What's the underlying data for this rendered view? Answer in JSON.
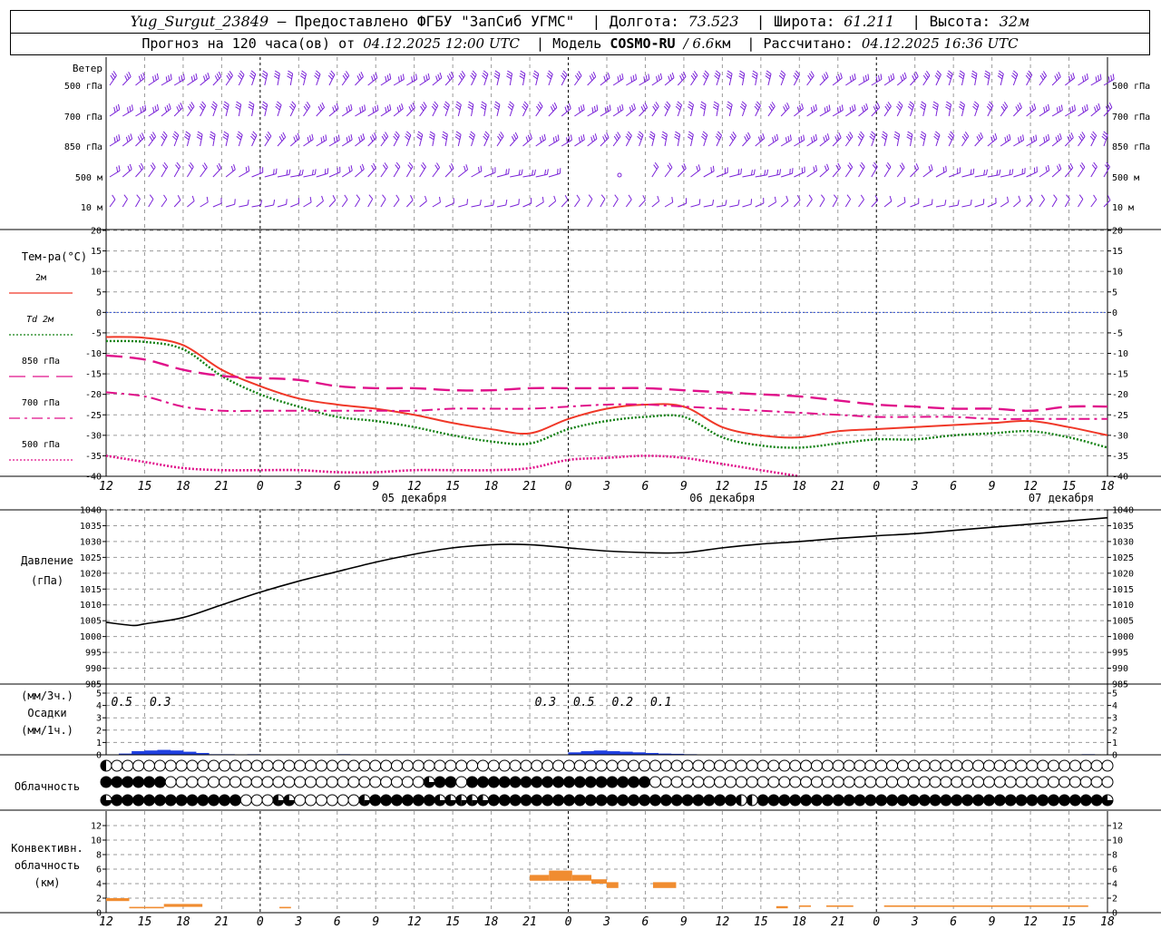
{
  "header": {
    "station": "Yug_Surgut_23849",
    "provided": "— Предоставлено ФГБУ \"ЗапСиб УГМС\"",
    "lon_label": "Долгота:",
    "lon_value": "73.523",
    "lat_label": "Широта:",
    "lat_value": "61.211",
    "alt_label": "Высота:",
    "alt_value": "32м",
    "forecast_label": "Прогноз на 120 часа(ов) от",
    "forecast_start": "04.12.2025 12:00 UTC",
    "model_label": "Модель",
    "model_name": "COSMO-RU",
    "model_res": "/ 6.6",
    "model_res_unit": "км",
    "calc_label": "Рассчитано:",
    "calc_time": "04.12.2025 16:36 UTC"
  },
  "chart_data": {
    "time_ticks": [
      "12",
      "15",
      "18",
      "21",
      "0",
      "3",
      "6",
      "9",
      "12",
      "15",
      "18",
      "21",
      "0",
      "3",
      "6",
      "9",
      "12",
      "15",
      "18",
      "21",
      "0",
      "3",
      "6",
      "9",
      "12",
      "15",
      "18"
    ],
    "day_labels": [
      "05 декабря",
      "06 декабря",
      "07 декабря"
    ],
    "wind": {
      "title": "Ветер",
      "levels": [
        "500 гПа",
        "700 гПа",
        "850 гПа",
        "500 м",
        "10  м"
      ]
    },
    "temperature": {
      "type": "line",
      "title": "Тем-ра(°C)",
      "ylim": [
        -40,
        20
      ],
      "yticks": [
        20,
        15,
        10,
        5,
        0,
        -5,
        -10,
        -15,
        -20,
        -25,
        -30,
        -35,
        -40
      ],
      "legend": [
        {
          "label": "2м",
          "color": "#e8201a",
          "style": "solid"
        },
        {
          "label": "Td  2м",
          "color": "#1a8a1a",
          "style": "dotted"
        },
        {
          "label": "850 гПа",
          "color": "#e0107a",
          "style": "longdash"
        },
        {
          "label": "700 гПа",
          "color": "#e0107a",
          "style": "dashdot"
        },
        {
          "label": "500 гПа",
          "color": "#e0107a",
          "style": "dense-dot"
        }
      ],
      "series": [
        {
          "name": "2м",
          "x": [
            0,
            1,
            2,
            3,
            4,
            5,
            6,
            7,
            8,
            9,
            10,
            11,
            12,
            13,
            14,
            15,
            16,
            17,
            18,
            19,
            20,
            21,
            22,
            23,
            24,
            25,
            26
          ],
          "values": [
            -6,
            -6.2,
            -8,
            -14,
            -18,
            -21,
            -22.5,
            -23.5,
            -25,
            -27,
            -28.5,
            -29.5,
            -26,
            -23.5,
            -22.5,
            -23,
            -28,
            -30,
            -30.5,
            -29,
            -28.5,
            -28,
            -27.5,
            -27,
            -26.5,
            -28,
            -30
          ]
        },
        {
          "name": "Td 2м",
          "x": [
            0,
            1,
            2,
            3,
            4,
            5,
            6,
            7,
            8,
            9,
            10,
            11,
            12,
            13,
            14,
            15,
            16,
            17,
            18,
            19,
            20,
            21,
            22,
            23,
            24,
            25,
            26
          ],
          "values": [
            -7,
            -7.2,
            -9,
            -15.5,
            -20,
            -23,
            -25.5,
            -26.5,
            -28,
            -30,
            -31.5,
            -32,
            -28.5,
            -26.5,
            -25.5,
            -25.5,
            -30.5,
            -32.5,
            -33,
            -32,
            -31,
            -31,
            -30,
            -29.5,
            -29,
            -30.5,
            -33
          ]
        },
        {
          "name": "850 гПа",
          "x": [
            0,
            1,
            2,
            3,
            4,
            5,
            6,
            7,
            8,
            9,
            10,
            11,
            12,
            13,
            14,
            15,
            16,
            17,
            18,
            19,
            20,
            21,
            22,
            23,
            24,
            25,
            26
          ],
          "values": [
            -10.5,
            -11.5,
            -14,
            -15.5,
            -16,
            -16.5,
            -18,
            -18.5,
            -18.5,
            -19,
            -19,
            -18.5,
            -18.5,
            -18.5,
            -18.5,
            -19,
            -19.5,
            -20,
            -20.5,
            -21.5,
            -22.5,
            -23,
            -23.5,
            -23.5,
            -24,
            -23,
            -23
          ]
        },
        {
          "name": "700 гПа",
          "x": [
            0,
            1,
            2,
            3,
            4,
            5,
            6,
            7,
            8,
            9,
            10,
            11,
            12,
            13,
            14,
            15,
            16,
            17,
            18,
            19,
            20,
            21,
            22,
            23,
            24,
            25,
            26
          ],
          "values": [
            -19.5,
            -20.5,
            -23,
            -24,
            -24,
            -24,
            -24,
            -24,
            -24,
            -23.5,
            -23.5,
            -23.5,
            -23,
            -22.5,
            -22.5,
            -23,
            -23.5,
            -24,
            -24.5,
            -25,
            -25.5,
            -25.5,
            -25.5,
            -26,
            -26,
            -26,
            -26
          ]
        },
        {
          "name": "500 гПа",
          "x": [
            0,
            1,
            2,
            3,
            4,
            5,
            6,
            7,
            8,
            9,
            10,
            11,
            12,
            13,
            14,
            15,
            16,
            17,
            18
          ],
          "values": [
            -35,
            -36.5,
            -38,
            -38.5,
            -38.5,
            -38.5,
            -39,
            -39,
            -38.5,
            -38.5,
            -38.5,
            -38,
            -36,
            -35.5,
            -35,
            -35.5,
            -37,
            -38.5,
            -40
          ]
        }
      ]
    },
    "pressure": {
      "type": "line",
      "title_1": "Давление",
      "title_2": "(гПа)",
      "ylim": [
        985,
        1040
      ],
      "yticks": [
        1040,
        1035,
        1030,
        1025,
        1020,
        1015,
        1010,
        1005,
        1000,
        995,
        990,
        985
      ],
      "series": [
        {
          "name": "pressure",
          "x": [
            0,
            0.7,
            1,
            2,
            3,
            4,
            5,
            6,
            7,
            8,
            9,
            10,
            11,
            12,
            13,
            14,
            15,
            16,
            17,
            18,
            19,
            20,
            21,
            22,
            23,
            24,
            25,
            26
          ],
          "values": [
            1004.5,
            1003.5,
            1004,
            1006,
            1010,
            1014,
            1017.5,
            1020.5,
            1023.5,
            1026,
            1028,
            1029,
            1029,
            1028,
            1027,
            1026.5,
            1026.5,
            1028,
            1029.2,
            1030,
            1031,
            1031.8,
            1032.5,
            1033.5,
            1034.5,
            1035.5,
            1036.5,
            1037.5
          ]
        }
      ]
    },
    "precipitation": {
      "type": "bar",
      "title_1": "(мм/3ч.)",
      "title_2": "Осадки",
      "title_3": "(мм/1ч.)",
      "ylim": [
        0,
        5
      ],
      "yticks": [
        5,
        4,
        3,
        2,
        1,
        0
      ],
      "labels": [
        {
          "x": 0.5,
          "text": "0.5"
        },
        {
          "x": 1.5,
          "text": "0.3"
        },
        {
          "x": 11.5,
          "text": "0.3"
        },
        {
          "x": 12.5,
          "text": "0.5"
        },
        {
          "x": 13.5,
          "text": "0.2"
        },
        {
          "x": 14.5,
          "text": "0.1"
        }
      ],
      "hourly": [
        0.1,
        0.3,
        0.35,
        0.4,
        0.35,
        0.25,
        0.15,
        0.05,
        0.05,
        0,
        0.05,
        0,
        0,
        0,
        0,
        0,
        0,
        0.05,
        0,
        0,
        0,
        0,
        0,
        0,
        0,
        0,
        0,
        0,
        0,
        0,
        0,
        0,
        0,
        0,
        0.02,
        0.2,
        0.3,
        0.35,
        0.3,
        0.25,
        0.2,
        0.15,
        0.1,
        0.08,
        0.05,
        0.03,
        0.02,
        0,
        0,
        0,
        0,
        0,
        0.02,
        0,
        0.03,
        0,
        0.02,
        0,
        0,
        0,
        0,
        0,
        0.02,
        0,
        0,
        0,
        0,
        0,
        0,
        0,
        0,
        0,
        0,
        0,
        0,
        0.05,
        0,
        0,
        0
      ]
    },
    "cloudiness": {
      "title": "Облачность",
      "rows": [
        "1000000000000000000000000000000000000000000000000000000000000000000000000000000000000000000000",
        "4444440000000000000000000000003440444444444444444440000000000000000000000000000000000000000000",
        "2444444444444000230000002444444232234444444444444444444444411444444444444444444444444444444442"
      ]
    },
    "convective": {
      "type": "bar",
      "title_1": "Конвективн.",
      "title_2": "облачность",
      "title_3": "(км)",
      "ylim": [
        0,
        14
      ],
      "yticks": [
        12,
        10,
        8,
        6,
        4,
        2,
        0
      ],
      "segments": [
        {
          "x0": 0,
          "x1": 0.6,
          "bottom": 1.6,
          "top": 2.0
        },
        {
          "x0": 0.6,
          "x1": 1.5,
          "bottom": 0.6,
          "top": 0.8
        },
        {
          "x0": 1.5,
          "x1": 2.5,
          "bottom": 0.8,
          "top": 1.2
        },
        {
          "x0": 4.5,
          "x1": 4.8,
          "bottom": 0.6,
          "top": 0.8
        },
        {
          "x0": 11,
          "x1": 11.5,
          "bottom": 4.4,
          "top": 5.2
        },
        {
          "x0": 11.5,
          "x1": 12.1,
          "bottom": 4.4,
          "top": 5.8
        },
        {
          "x0": 12.1,
          "x1": 12.6,
          "bottom": 4.4,
          "top": 5.2
        },
        {
          "x0": 12.6,
          "x1": 13,
          "bottom": 4.0,
          "top": 4.6
        },
        {
          "x0": 13,
          "x1": 13.3,
          "bottom": 3.4,
          "top": 4.2
        },
        {
          "x0": 14.2,
          "x1": 14.8,
          "bottom": 3.4,
          "top": 4.2
        },
        {
          "x0": 17.4,
          "x1": 17.7,
          "bottom": 0.6,
          "top": 0.9
        },
        {
          "x0": 18,
          "x1": 18.3,
          "bottom": 0.8,
          "top": 1.0
        },
        {
          "x0": 18.7,
          "x1": 19.4,
          "bottom": 0.8,
          "top": 1.0
        },
        {
          "x0": 20.2,
          "x1": 25.5,
          "bottom": 0.8,
          "top": 1.0
        }
      ]
    }
  }
}
